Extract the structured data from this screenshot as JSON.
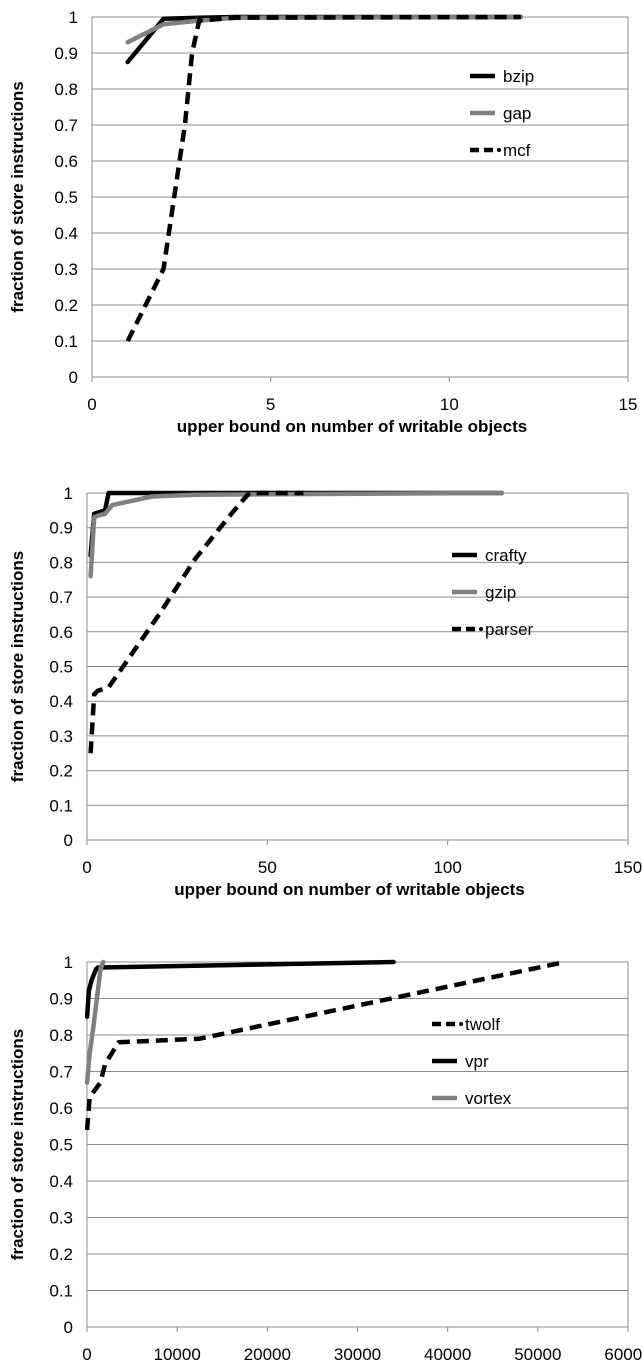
{
  "chart_data": [
    {
      "type": "line",
      "xlabel": "upper bound on number of writable objects",
      "ylabel": "fraction of store instructions",
      "xlim": [
        0,
        15
      ],
      "ylim": [
        0,
        1
      ],
      "xticks": [
        "0",
        "5",
        "10",
        "15"
      ],
      "yticks": [
        "0",
        "0.1",
        "0.2",
        "0.3",
        "0.4",
        "0.5",
        "0.6",
        "0.7",
        "0.8",
        "0.9",
        "1"
      ],
      "grid": "horizontal",
      "legend_position": "right",
      "series": [
        {
          "name": "bzip",
          "color": "#000000",
          "style": "solid",
          "x": [
            1,
            2,
            3,
            4,
            12
          ],
          "y": [
            0.875,
            0.995,
            0.998,
            1.0,
            1.0
          ]
        },
        {
          "name": "gap",
          "color": "#808080",
          "style": "solid",
          "x": [
            1,
            2,
            3,
            4,
            12
          ],
          "y": [
            0.93,
            0.98,
            0.99,
            0.998,
            1.0
          ]
        },
        {
          "name": "mcf",
          "color": "#000000",
          "style": "dashed",
          "x": [
            1,
            2,
            2.3,
            2.6,
            2.8,
            3,
            4,
            12
          ],
          "y": [
            0.1,
            0.3,
            0.5,
            0.7,
            0.9,
            0.99,
            0.998,
            1.0
          ]
        }
      ]
    },
    {
      "type": "line",
      "xlabel": "upper bound on number of writable objects",
      "ylabel": "fraction of store instructions",
      "xlim": [
        0,
        150
      ],
      "ylim": [
        0,
        1
      ],
      "xticks": [
        "0",
        "50",
        "100",
        "150"
      ],
      "yticks": [
        "0",
        "0.1",
        "0.2",
        "0.3",
        "0.4",
        "0.5",
        "0.6",
        "0.7",
        "0.8",
        "0.9",
        "1"
      ],
      "grid": "horizontal",
      "legend_position": "right",
      "series": [
        {
          "name": "crafty",
          "color": "#000000",
          "style": "solid",
          "x": [
            1,
            2,
            5,
            6,
            10,
            20,
            115
          ],
          "y": [
            0.82,
            0.94,
            0.95,
            1.0,
            1.0,
            1.0,
            1.0
          ]
        },
        {
          "name": "gzip",
          "color": "#808080",
          "style": "solid",
          "x": [
            1,
            2,
            3,
            5,
            7,
            18,
            30,
            115
          ],
          "y": [
            0.76,
            0.93,
            0.935,
            0.94,
            0.965,
            0.99,
            0.995,
            1.0
          ]
        },
        {
          "name": "parser",
          "color": "#000000",
          "style": "dashed",
          "x": [
            1,
            2,
            3,
            6,
            10,
            20,
            30,
            40,
            45,
            60
          ],
          "y": [
            0.25,
            0.42,
            0.43,
            0.44,
            0.5,
            0.65,
            0.81,
            0.94,
            1.0,
            1.0
          ]
        }
      ]
    },
    {
      "type": "line",
      "xlabel": "upper bound on number of writable objects",
      "ylabel": "fraction of store instructions",
      "xlim": [
        0,
        60000
      ],
      "ylim": [
        0,
        1
      ],
      "xticks": [
        "0",
        "10000",
        "20000",
        "30000",
        "40000",
        "50000",
        "60000"
      ],
      "yticks": [
        "0",
        "0.1",
        "0.2",
        "0.3",
        "0.4",
        "0.5",
        "0.6",
        "0.7",
        "0.8",
        "0.9",
        "1"
      ],
      "grid": "horizontal",
      "legend_position": "right",
      "series": [
        {
          "name": "twolf",
          "color": "#000000",
          "style": "dashed",
          "x": [
            10,
            300,
            1500,
            2000,
            3500,
            12500,
            53000
          ],
          "y": [
            0.54,
            0.63,
            0.67,
            0.72,
            0.78,
            0.79,
            1.0
          ]
        },
        {
          "name": "vpr",
          "color": "#000000",
          "style": "solid",
          "x": [
            10,
            200,
            500,
            1000,
            1200,
            34000
          ],
          "y": [
            0.85,
            0.92,
            0.95,
            0.98,
            0.985,
            1.0
          ]
        },
        {
          "name": "vortex",
          "color": "#808080",
          "style": "solid",
          "x": [
            10,
            300,
            700,
            1100,
            1500,
            1800
          ],
          "y": [
            0.67,
            0.75,
            0.82,
            0.9,
            0.98,
            1.0
          ]
        }
      ]
    }
  ]
}
